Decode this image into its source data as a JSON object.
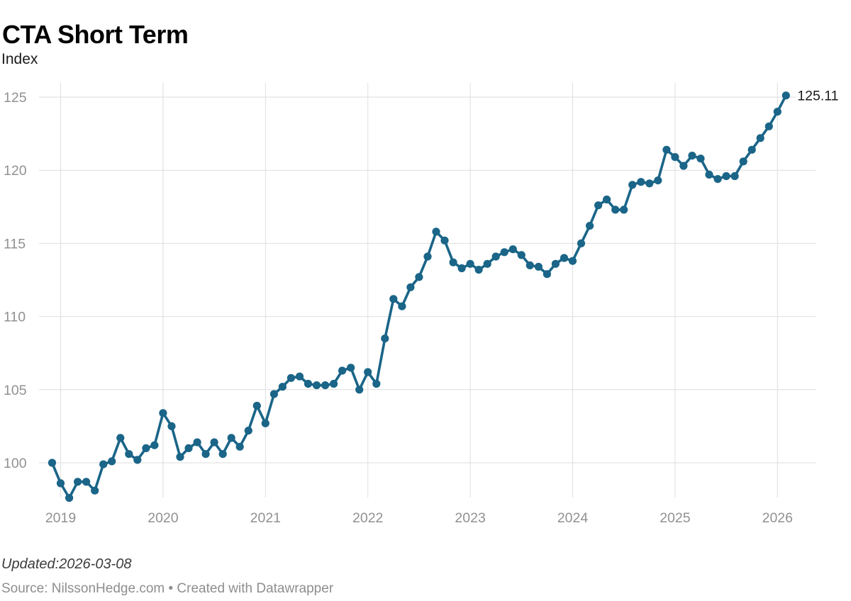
{
  "header": {
    "title": "CTA Short Term",
    "subtitle": "Index"
  },
  "footer": {
    "updated": "Updated:2026-03-08",
    "source": "Source: NilssonHedge.com • Created with Datawrapper"
  },
  "colors": {
    "line": "#1a6588",
    "marker": "#1a6588",
    "grid": "#dedede",
    "axis_label": "#919191",
    "end_label": "#1a1a1a",
    "title": "#000000",
    "subtitle": "#191919",
    "updated_text": "#3c3c3c",
    "source_text": "#8e8e8e",
    "background": "#ffffff"
  },
  "chart_data": {
    "type": "line",
    "title": "CTA Short Term",
    "ylabel": "Index",
    "series_name": "CTA Short Term Index",
    "markers": true,
    "grid": true,
    "legend_position": "none",
    "end_label": "125.11",
    "yticks": [
      100,
      105,
      110,
      115,
      120,
      125
    ],
    "ylim": [
      97.5,
      126
    ],
    "xticks": [
      "2019",
      "2020",
      "2021",
      "2022",
      "2023",
      "2024",
      "2025",
      "2026"
    ],
    "x": [
      "2018-12",
      "2019-01",
      "2019-02",
      "2019-03",
      "2019-04",
      "2019-05",
      "2019-06",
      "2019-07",
      "2019-08",
      "2019-09",
      "2019-10",
      "2019-11",
      "2019-12",
      "2020-01",
      "2020-02",
      "2020-03",
      "2020-04",
      "2020-05",
      "2020-06",
      "2020-07",
      "2020-08",
      "2020-09",
      "2020-10",
      "2020-11",
      "2020-12",
      "2021-01",
      "2021-02",
      "2021-03",
      "2021-04",
      "2021-05",
      "2021-06",
      "2021-07",
      "2021-08",
      "2021-09",
      "2021-10",
      "2021-11",
      "2021-12",
      "2022-01",
      "2022-02",
      "2022-03",
      "2022-04",
      "2022-05",
      "2022-06",
      "2022-07",
      "2022-08",
      "2022-09",
      "2022-10",
      "2022-11",
      "2022-12",
      "2023-01",
      "2023-02",
      "2023-03",
      "2023-04",
      "2023-05",
      "2023-06",
      "2023-07",
      "2023-08",
      "2023-09",
      "2023-10",
      "2023-11",
      "2023-12",
      "2024-01",
      "2024-02",
      "2024-03",
      "2024-04",
      "2024-05",
      "2024-06",
      "2024-07",
      "2024-08",
      "2024-09",
      "2024-10",
      "2024-11",
      "2024-12",
      "2025-01",
      "2025-02",
      "2025-03",
      "2025-04",
      "2025-05",
      "2025-06",
      "2025-07",
      "2025-08",
      "2025-09",
      "2025-10",
      "2025-11",
      "2025-12",
      "2026-01",
      "2026-02"
    ],
    "values": [
      100.0,
      98.6,
      97.6,
      98.7,
      98.7,
      98.1,
      99.9,
      100.1,
      101.7,
      100.6,
      100.2,
      101.0,
      101.2,
      103.4,
      102.5,
      100.4,
      101.0,
      101.4,
      100.6,
      101.4,
      100.6,
      101.7,
      101.1,
      102.2,
      103.9,
      102.7,
      104.7,
      105.2,
      105.8,
      105.9,
      105.4,
      105.3,
      105.3,
      105.4,
      106.3,
      106.5,
      105.0,
      106.2,
      105.4,
      108.5,
      111.2,
      110.7,
      112.0,
      112.7,
      114.1,
      115.8,
      115.2,
      113.7,
      113.3,
      113.6,
      113.2,
      113.6,
      114.1,
      114.4,
      114.6,
      114.2,
      113.5,
      113.4,
      112.9,
      113.6,
      114.0,
      113.8,
      115.0,
      116.2,
      117.6,
      118.0,
      117.3,
      117.3,
      119.0,
      119.2,
      119.1,
      119.3,
      121.4,
      120.9,
      120.3,
      121.0,
      120.8,
      119.7,
      119.4,
      119.6,
      119.6,
      120.6,
      121.4,
      122.2,
      123.0,
      124.0,
      125.11
    ]
  }
}
